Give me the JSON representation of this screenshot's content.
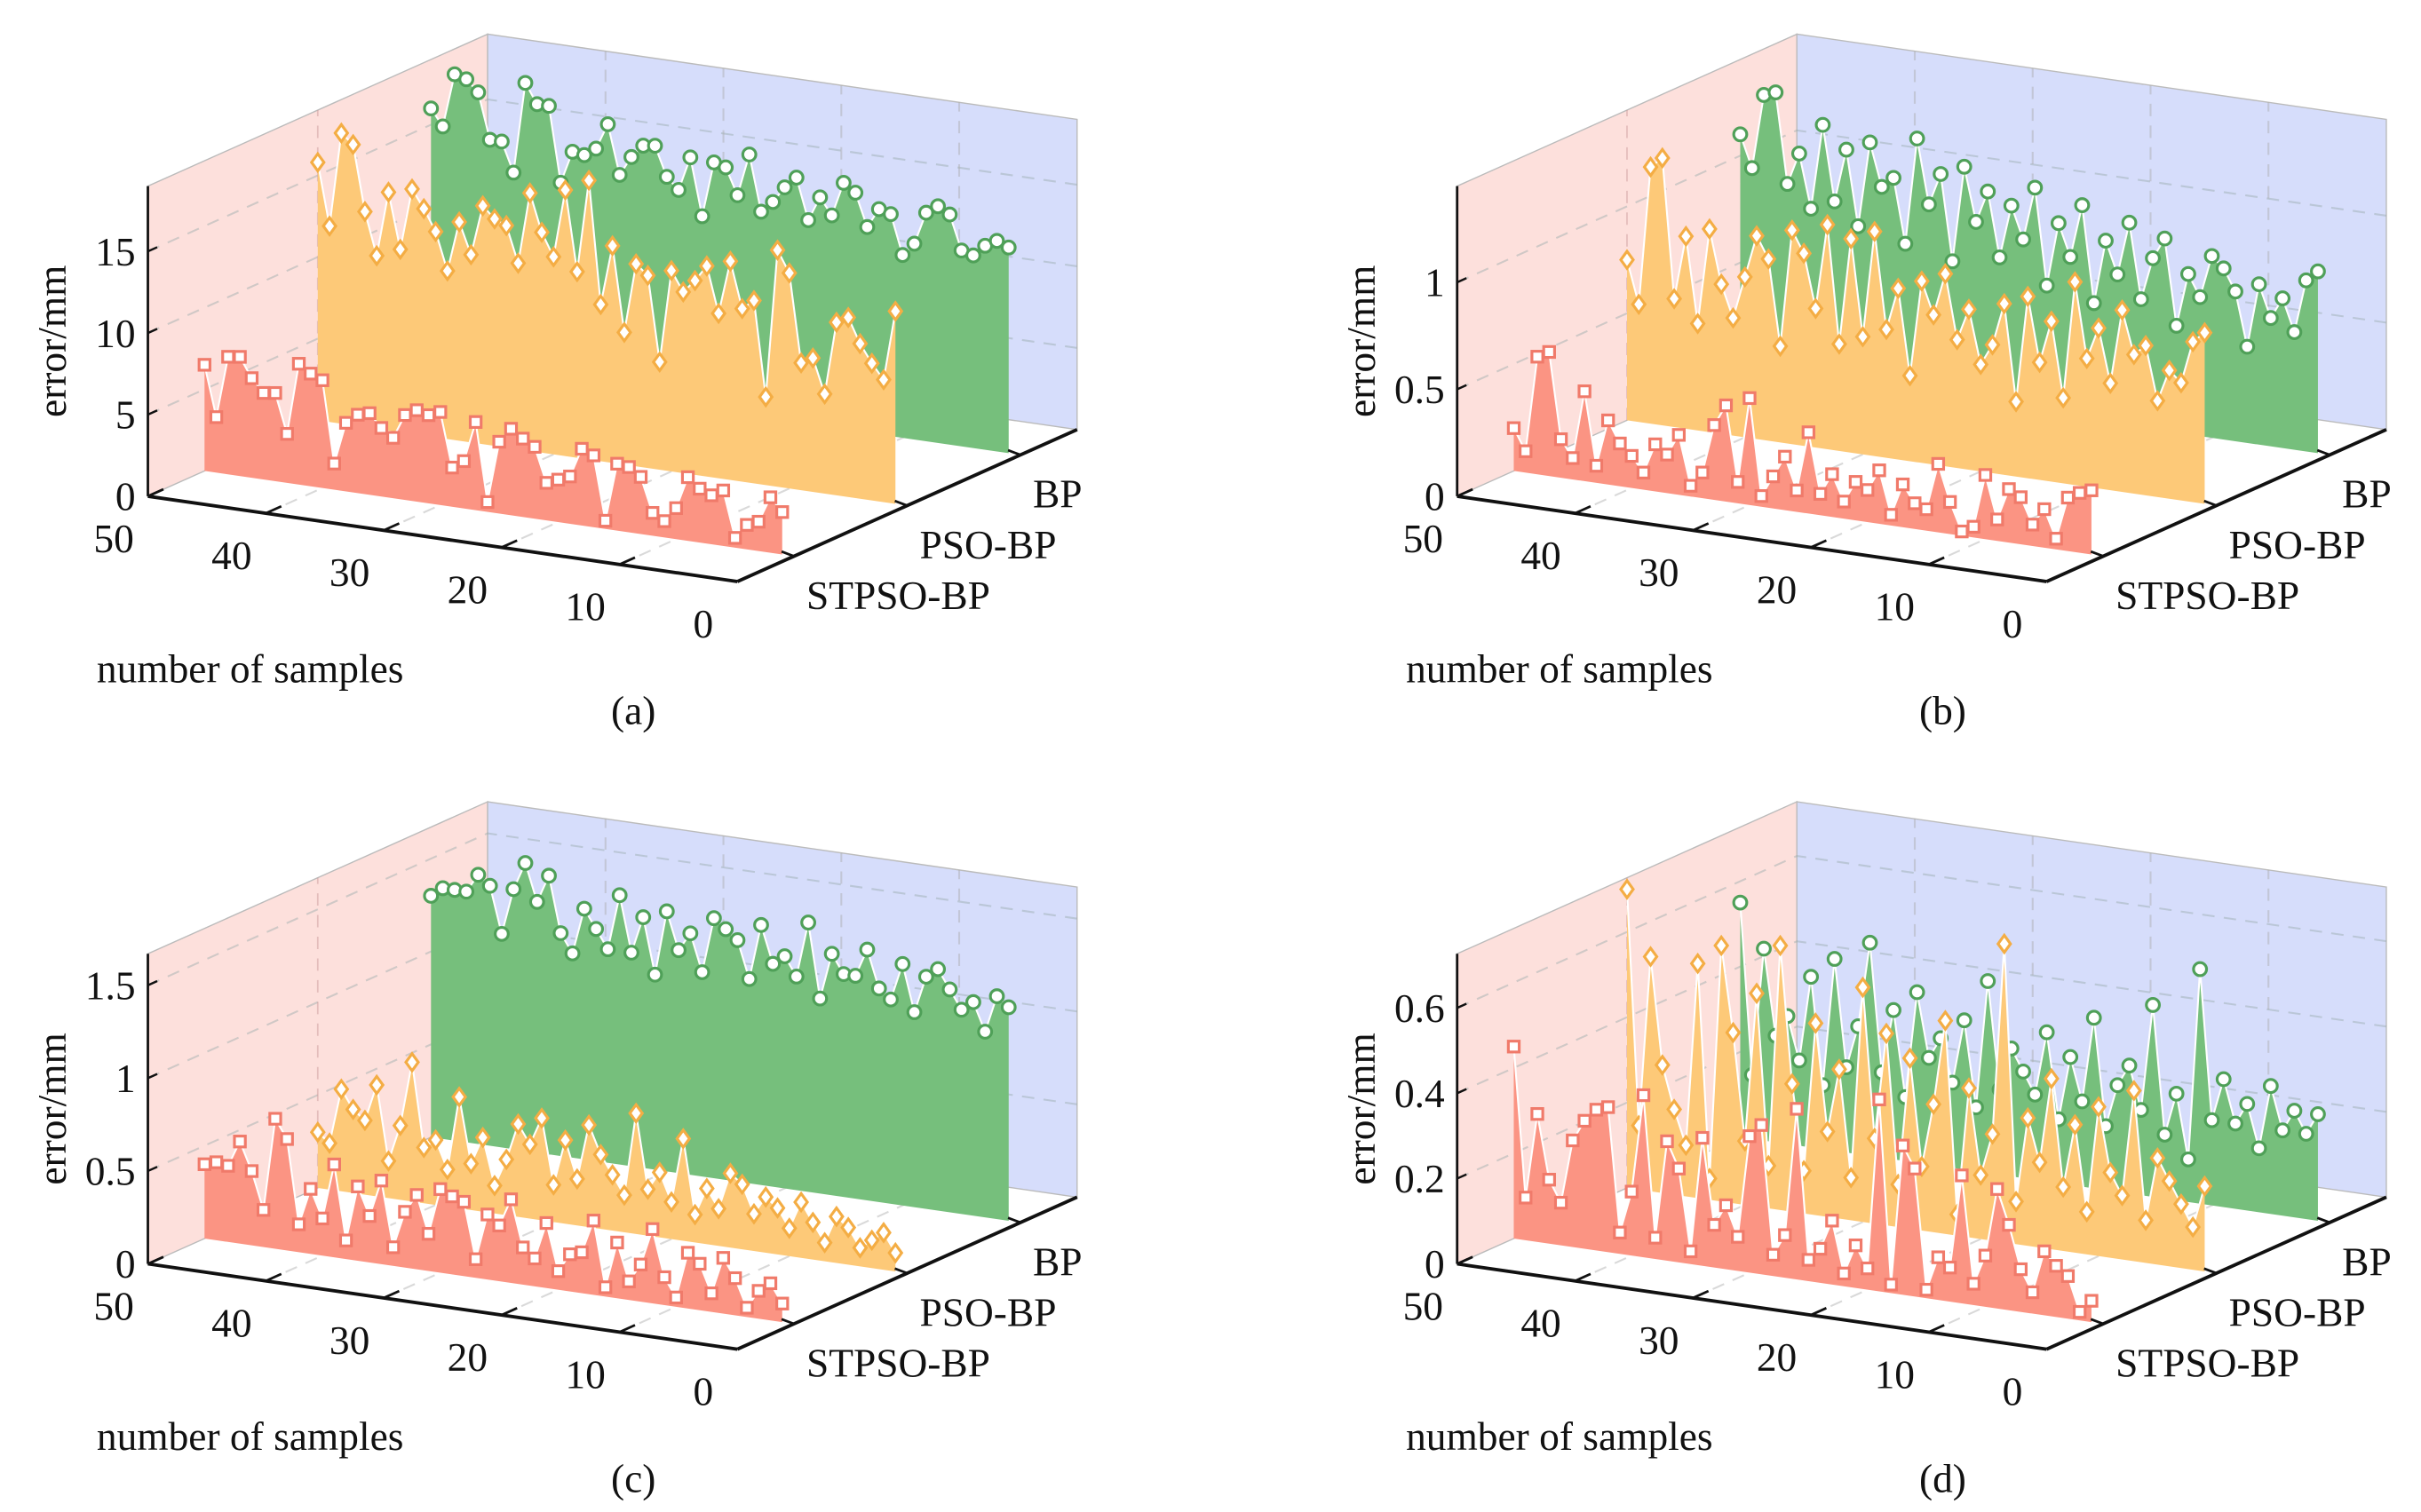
{
  "colors": {
    "left_wall": "#fde0dc",
    "back_wall": "#d6ddfb",
    "STPSO-BP": {
      "fill": "#fb9483",
      "marker": "#f07a6a"
    },
    "PSO-BP": {
      "fill": "#fdc978",
      "marker": "#f4ad44"
    },
    "BP": {
      "fill": "#76bf7c",
      "marker": "#4fa058"
    }
  },
  "chart_data": [
    {
      "type": "area-3d",
      "panel_label": "(a)",
      "xlabel": "number of samples",
      "zlabel": "error/mm",
      "x_ticks": [
        "0",
        "10",
        "20",
        "30",
        "40",
        "50"
      ],
      "z_ticks": [
        "0",
        "5",
        "10",
        "15"
      ],
      "z_tick_values": [
        0,
        5,
        10,
        15
      ],
      "zlim": [
        0,
        19
      ],
      "categories": [
        "STPSO-BP",
        "PSO-BP",
        "BP"
      ],
      "x": [
        50,
        49,
        48,
        47,
        46,
        45,
        44,
        43,
        42,
        41,
        40,
        39,
        38,
        37,
        36,
        35,
        34,
        33,
        32,
        31,
        30,
        29,
        28,
        27,
        26,
        25,
        24,
        23,
        22,
        21,
        20,
        19,
        18,
        17,
        16,
        15,
        14,
        13,
        12,
        11,
        10,
        9,
        8,
        7,
        6,
        5,
        4,
        3,
        2,
        1
      ],
      "series": [
        {
          "name": "STPSO-BP",
          "marker": "square",
          "values": [
            6.5,
            3.4,
            7.2,
            7.3,
            6.1,
            5.3,
            5.4,
            3.0,
            7.4,
            6.9,
            6.6,
            1.6,
            4.2,
            4.8,
            5.0,
            4.2,
            3.7,
            5.2,
            5.6,
            5.4,
            5.7,
            2.4,
            2.9,
            5.4,
            0.6,
            4.4,
            5.3,
            4.8,
            4.4,
            2.3,
            2.6,
            2.9,
            4.7,
            4.4,
            0.5,
            4.1,
            4.0,
            3.5,
            1.4,
            1.0,
            1.9,
            3.9,
            3.3,
            3.0,
            3.4,
            0.6,
            1.5,
            1.8,
            3.4,
            2.6
          ]
        },
        {
          "name": "PSO-BP",
          "marker": "diamond",
          "values": [
            15.8,
            12.0,
            17.8,
            17.2,
            13.2,
            10.6,
            14.6,
            11.2,
            15.0,
            13.9,
            12.6,
            10.3,
            13.4,
            11.5,
            14.6,
            13.9,
            13.6,
            11.4,
            15.8,
            13.5,
            12.1,
            16.3,
            11.4,
            17.1,
            9.6,
            13.3,
            8.1,
            12.4,
            11.8,
            6.6,
            12.3,
            11.1,
            11.9,
            12.9,
            10.1,
            13.4,
            10.6,
            11.2,
            5.4,
            14.5,
            13.2,
            7.8,
            8.2,
            6.1,
            10.6,
            11.0,
            9.5,
            8.4,
            7.5,
            11.8
          ]
        },
        {
          "name": "BP",
          "marker": "circle",
          "values": [
            16.0,
            15.0,
            18.3,
            18.1,
            17.4,
            14.6,
            14.6,
            12.8,
            18.4,
            17.2,
            17.2,
            12.6,
            14.6,
            14.5,
            15.0,
            16.6,
            13.6,
            14.8,
            15.6,
            15.7,
            13.9,
            13.2,
            15.3,
            11.8,
            15.2,
            15.0,
            13.4,
            16.0,
            12.6,
            13.3,
            14.3,
            15.0,
            12.5,
            14.0,
            13.0,
            15.1,
            14.6,
            12.6,
            13.8,
            13.6,
            11.2,
            12.0,
            14.0,
            14.5,
            14.1,
            12.0,
            11.8,
            12.5,
            12.9,
            12.6
          ]
        }
      ]
    },
    {
      "type": "area-3d",
      "panel_label": "(b)",
      "xlabel": "number of samples",
      "zlabel": "error/mm",
      "x_ticks": [
        "0",
        "10",
        "20",
        "30",
        "40",
        "50"
      ],
      "z_ticks": [
        "0",
        "0.5",
        "1"
      ],
      "z_tick_values": [
        0,
        0.5,
        1
      ],
      "zlim": [
        0,
        1.45
      ],
      "categories": [
        "STPSO-BP",
        "PSO-BP",
        "BP"
      ],
      "x": [
        50,
        49,
        48,
        47,
        46,
        45,
        44,
        43,
        42,
        41,
        40,
        39,
        38,
        37,
        36,
        35,
        34,
        33,
        32,
        31,
        30,
        29,
        28,
        27,
        26,
        25,
        24,
        23,
        22,
        21,
        20,
        19,
        18,
        17,
        16,
        15,
        14,
        13,
        12,
        11,
        10,
        9,
        8,
        7,
        6,
        5,
        4,
        3,
        2,
        1
      ],
      "series": [
        {
          "name": "STPSO-BP",
          "marker": "square",
          "values": [
            0.2,
            0.1,
            0.55,
            0.58,
            0.18,
            0.1,
            0.42,
            0.08,
            0.3,
            0.2,
            0.15,
            0.08,
            0.22,
            0.18,
            0.28,
            0.05,
            0.12,
            0.35,
            0.45,
            0.1,
            0.5,
            0.05,
            0.15,
            0.25,
            0.1,
            0.38,
            0.1,
            0.2,
            0.08,
            0.18,
            0.15,
            0.25,
            0.05,
            0.2,
            0.12,
            0.1,
            0.32,
            0.15,
            0.02,
            0.05,
            0.3,
            0.1,
            0.25,
            0.22,
            0.1,
            0.18,
            0.05,
            0.25,
            0.28,
            0.3
          ]
        },
        {
          "name": "PSO-BP",
          "marker": "diamond",
          "values": [
            0.75,
            0.55,
            1.2,
            1.25,
            0.6,
            0.9,
            0.5,
            0.95,
            0.7,
            0.55,
            0.75,
            0.95,
            0.85,
            0.45,
            1.0,
            0.9,
            0.65,
            1.05,
            0.5,
            1.0,
            0.55,
            1.05,
            0.6,
            0.8,
            0.4,
            0.85,
            0.7,
            0.9,
            0.6,
            0.75,
            0.5,
            0.6,
            0.8,
            0.35,
            0.85,
            0.55,
            0.75,
            0.4,
            0.95,
            0.6,
            0.75,
            0.5,
            0.85,
            0.65,
            0.7,
            0.45,
            0.6,
            0.55,
            0.75,
            0.8
          ]
        },
        {
          "name": "BP",
          "marker": "circle",
          "values": [
            1.1,
            0.95,
            1.3,
            1.32,
            0.9,
            1.05,
            0.8,
            1.2,
            0.85,
            1.1,
            0.75,
            1.15,
            0.95,
            1.0,
            0.7,
            1.2,
            0.9,
            1.05,
            0.65,
            1.1,
            0.85,
            1.0,
            0.7,
            0.95,
            0.8,
            1.05,
            0.6,
            0.9,
            0.75,
            1.0,
            0.55,
            0.85,
            0.7,
            0.95,
            0.6,
            0.8,
            0.9,
            0.5,
            0.75,
            0.65,
            0.85,
            0.8,
            0.7,
            0.45,
            0.75,
            0.6,
            0.7,
            0.55,
            0.8,
            0.85
          ]
        }
      ]
    },
    {
      "type": "area-3d",
      "panel_label": "(c)",
      "xlabel": "number of samples",
      "zlabel": "error/mm",
      "x_ticks": [
        "0",
        "10",
        "20",
        "30",
        "40",
        "50"
      ],
      "z_ticks": [
        "0",
        "0.5",
        "1",
        "1.5"
      ],
      "z_tick_values": [
        0,
        0.5,
        1,
        1.5
      ],
      "zlim": [
        0,
        1.67
      ],
      "categories": [
        "STPSO-BP",
        "PSO-BP",
        "BP"
      ],
      "x": [
        50,
        49,
        48,
        47,
        46,
        45,
        44,
        43,
        42,
        41,
        40,
        39,
        38,
        37,
        36,
        35,
        34,
        33,
        32,
        31,
        30,
        29,
        28,
        27,
        26,
        25,
        24,
        23,
        22,
        21,
        20,
        19,
        18,
        17,
        16,
        15,
        14,
        13,
        12,
        11,
        10,
        9,
        8,
        7,
        6,
        5,
        4,
        3,
        2,
        1
      ],
      "series": [
        {
          "name": "STPSO-BP",
          "marker": "square",
          "values": [
            0.4,
            0.42,
            0.41,
            0.55,
            0.4,
            0.2,
            0.7,
            0.6,
            0.15,
            0.35,
            0.2,
            0.5,
            0.1,
            0.4,
            0.25,
            0.45,
            0.1,
            0.3,
            0.4,
            0.2,
            0.45,
            0.42,
            0.4,
            0.1,
            0.35,
            0.3,
            0.45,
            0.2,
            0.15,
            0.35,
            0.1,
            0.2,
            0.22,
            0.4,
            0.05,
            0.3,
            0.1,
            0.2,
            0.4,
            0.15,
            0.05,
            0.3,
            0.25,
            0.1,
            0.3,
            0.2,
            0.05,
            0.15,
            0.2,
            0.1
          ]
        },
        {
          "name": "PSO-BP",
          "marker": "diamond",
          "values": [
            0.3,
            0.25,
            0.55,
            0.45,
            0.4,
            0.6,
            0.2,
            0.4,
            0.75,
            0.3,
            0.35,
            0.2,
            0.6,
            0.25,
            0.4,
            0.15,
            0.3,
            0.5,
            0.4,
            0.55,
            0.2,
            0.45,
            0.25,
            0.55,
            0.4,
            0.3,
            0.2,
            0.65,
            0.25,
            0.35,
            0.2,
            0.55,
            0.15,
            0.3,
            0.2,
            0.4,
            0.35,
            0.2,
            0.3,
            0.25,
            0.15,
            0.3,
            0.2,
            0.1,
            0.25,
            0.2,
            0.1,
            0.15,
            0.2,
            0.1
          ]
        },
        {
          "name": "BP",
          "marker": "circle",
          "values": [
            1.3,
            1.35,
            1.35,
            1.35,
            1.45,
            1.4,
            1.15,
            1.4,
            1.55,
            1.35,
            1.5,
            1.2,
            1.1,
            1.35,
            1.25,
            1.15,
            1.45,
            1.15,
            1.35,
            1.05,
            1.4,
            1.2,
            1.3,
            1.1,
            1.4,
            1.35,
            1.3,
            1.1,
            1.4,
            1.2,
            1.25,
            1.15,
            1.45,
            1.05,
            1.3,
            1.2,
            1.2,
            1.35,
            1.15,
            1.1,
            1.3,
            1.05,
            1.25,
            1.3,
            1.2,
            1.1,
            1.15,
            1.0,
            1.2,
            1.15
          ]
        }
      ]
    },
    {
      "type": "area-3d",
      "panel_label": "(d)",
      "xlabel": "number of samples",
      "zlabel": "error/mm",
      "x_ticks": [
        "0",
        "10",
        "20",
        "30",
        "40",
        "50"
      ],
      "z_ticks": [
        "0",
        "0.2",
        "0.4",
        "0.6"
      ],
      "z_tick_values": [
        0,
        0.2,
        0.4,
        0.6
      ],
      "zlim": [
        0,
        0.727
      ],
      "categories": [
        "STPSO-BP",
        "PSO-BP",
        "BP"
      ],
      "x": [
        50,
        49,
        48,
        47,
        46,
        45,
        44,
        43,
        42,
        41,
        40,
        39,
        38,
        37,
        36,
        35,
        34,
        33,
        32,
        31,
        30,
        29,
        28,
        27,
        26,
        25,
        24,
        23,
        22,
        21,
        20,
        19,
        18,
        17,
        16,
        15,
        14,
        13,
        12,
        11,
        10,
        9,
        8,
        7,
        6,
        5,
        4,
        3,
        2,
        1
      ],
      "series": [
        {
          "name": "STPSO-BP",
          "marker": "square",
          "values": [
            0.45,
            0.1,
            0.3,
            0.15,
            0.1,
            0.25,
            0.3,
            0.33,
            0.34,
            0.05,
            0.15,
            0.38,
            0.05,
            0.28,
            0.22,
            0.03,
            0.3,
            0.1,
            0.15,
            0.08,
            0.32,
            0.35,
            0.05,
            0.1,
            0.4,
            0.05,
            0.08,
            0.15,
            0.03,
            0.1,
            0.05,
            0.45,
            0.02,
            0.35,
            0.3,
            0.02,
            0.1,
            0.08,
            0.3,
            0.05,
            0.12,
            0.28,
            0.2,
            0.1,
            0.05,
            0.15,
            0.12,
            0.1,
            0.02,
            0.05
          ]
        },
        {
          "name": "PSO-BP",
          "marker": "diamond",
          "values": [
            0.7,
            0.15,
            0.55,
            0.3,
            0.2,
            0.12,
            0.55,
            0.05,
            0.6,
            0.4,
            0.15,
            0.5,
            0.1,
            0.62,
            0.3,
            0.1,
            0.45,
            0.2,
            0.35,
            0.1,
            0.55,
            0.2,
            0.45,
            0.1,
            0.4,
            0.15,
            0.3,
            0.5,
            0.05,
            0.35,
            0.15,
            0.25,
            0.7,
            0.1,
            0.3,
            0.2,
            0.4,
            0.15,
            0.3,
            0.1,
            0.35,
            0.2,
            0.15,
            0.4,
            0.1,
            0.25,
            0.2,
            0.15,
            0.1,
            0.2
          ]
        },
        {
          "name": "BP",
          "marker": "circle",
          "values": [
            0.55,
            0.15,
            0.45,
            0.25,
            0.3,
            0.2,
            0.4,
            0.15,
            0.45,
            0.2,
            0.3,
            0.5,
            0.2,
            0.35,
            0.15,
            0.4,
            0.25,
            0.3,
            0.2,
            0.35,
            0.15,
            0.45,
            0.2,
            0.3,
            0.25,
            0.2,
            0.35,
            0.15,
            0.3,
            0.2,
            0.4,
            0.15,
            0.25,
            0.3,
            0.2,
            0.45,
            0.15,
            0.25,
            0.1,
            0.55,
            0.2,
            0.3,
            0.2,
            0.25,
            0.15,
            0.3,
            0.2,
            0.25,
            0.2,
            0.25
          ]
        }
      ]
    }
  ]
}
